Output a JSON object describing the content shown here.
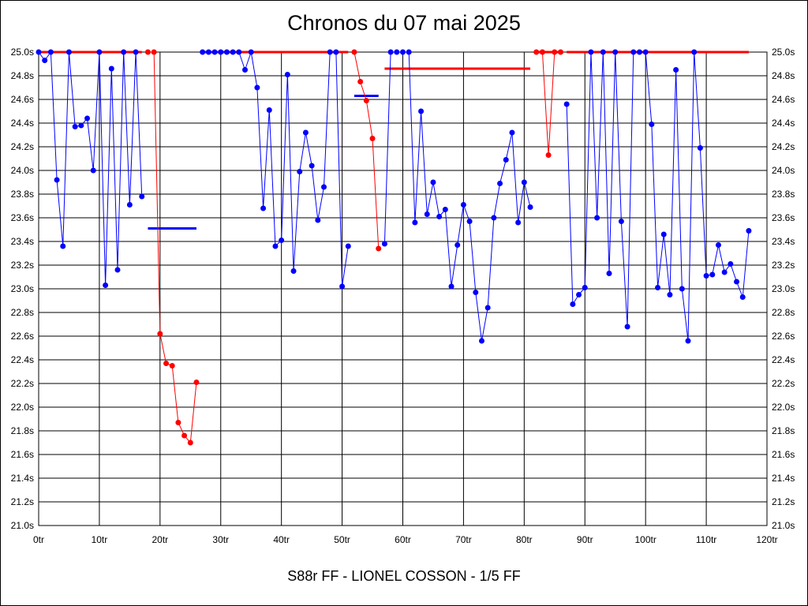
{
  "chart_data": {
    "type": "line",
    "title": "Chronos du 07 mai 2025",
    "subtitle": "S88r FF - LIONEL COSSON - 1/5 FF",
    "xlim": [
      0,
      120
    ],
    "ylim": [
      21.0,
      25.0
    ],
    "x_ticks": [
      0,
      10,
      20,
      30,
      40,
      50,
      60,
      70,
      80,
      90,
      100,
      110,
      120
    ],
    "x_tick_labels": [
      "0tr",
      "10tr",
      "20tr",
      "30tr",
      "40tr",
      "50tr",
      "60tr",
      "70tr",
      "80tr",
      "90tr",
      "100tr",
      "110tr",
      "120tr"
    ],
    "y_ticks": [
      21.0,
      21.2,
      21.4,
      21.6,
      21.8,
      22.0,
      22.2,
      22.4,
      22.6,
      22.8,
      23.0,
      23.2,
      23.4,
      23.6,
      23.8,
      24.0,
      24.2,
      24.4,
      24.6,
      24.8,
      25.0
    ],
    "y_tick_labels": [
      "21.0s",
      "21.2s",
      "21.4s",
      "21.6s",
      "21.8s",
      "22.0s",
      "22.2s",
      "22.4s",
      "22.6s",
      "22.8s",
      "23.0s",
      "23.2s",
      "23.4s",
      "23.6s",
      "23.8s",
      "24.0s",
      "24.2s",
      "24.4s",
      "24.6s",
      "24.8s",
      "25.0s"
    ],
    "grid": true,
    "series": [
      {
        "color": "#0000ff",
        "x": [
          0,
          1,
          2,
          3,
          4,
          5,
          6,
          7,
          8,
          9,
          10,
          11,
          12,
          13,
          14,
          15,
          16,
          17
        ],
        "y": [
          25.0,
          24.93,
          25.0,
          23.92,
          23.36,
          25.0,
          24.37,
          24.38,
          24.44,
          24.0,
          25.0,
          23.03,
          24.86,
          23.16,
          25.0,
          23.71,
          25.0,
          23.78
        ]
      },
      {
        "color": "#ff0000",
        "x": [
          18,
          19,
          20,
          21,
          22,
          23,
          24,
          25,
          26
        ],
        "y": [
          25.0,
          25.0,
          22.62,
          22.37,
          22.35,
          21.87,
          21.76,
          21.7,
          22.21
        ]
      },
      {
        "color": "#0000ff",
        "x": [
          27,
          28,
          29,
          30,
          31,
          32,
          33,
          34,
          35,
          36,
          37,
          38,
          39,
          40,
          41,
          42,
          43,
          44,
          45,
          46,
          47,
          48,
          49,
          50,
          51
        ],
        "y": [
          25.0,
          25.0,
          25.0,
          25.0,
          25.0,
          25.0,
          25.0,
          24.85,
          25.0,
          24.7,
          23.68,
          24.51,
          23.36,
          23.41,
          24.81,
          23.15,
          23.99,
          24.32,
          24.04,
          23.58,
          23.86,
          25.0,
          25.0,
          23.02,
          23.36
        ]
      },
      {
        "color": "#ff0000",
        "x": [
          52,
          53,
          54,
          55,
          56
        ],
        "y": [
          25.0,
          24.75,
          24.59,
          24.27,
          23.34
        ]
      },
      {
        "color": "#0000ff",
        "x": [
          57,
          58,
          59,
          60,
          61,
          62,
          63,
          64,
          65,
          66,
          67,
          68,
          69,
          70,
          71,
          72,
          73,
          74,
          75,
          76,
          77,
          78,
          79,
          80,
          81
        ],
        "y": [
          23.38,
          25.0,
          25.0,
          25.0,
          25.0,
          23.56,
          24.5,
          23.63,
          23.9,
          23.61,
          23.67,
          23.02,
          23.37,
          23.71,
          23.57,
          22.97,
          22.56,
          22.84,
          23.6,
          23.89,
          24.09,
          24.32,
          23.56,
          23.9,
          23.69
        ]
      },
      {
        "color": "#ff0000",
        "x": [
          82,
          83,
          84,
          85,
          86
        ],
        "y": [
          25.0,
          25.0,
          24.13,
          25.0,
          25.0
        ]
      },
      {
        "color": "#0000ff",
        "x": [
          87,
          88,
          89,
          90,
          91,
          92,
          93,
          94,
          95,
          96,
          97,
          98,
          99,
          100,
          101,
          102,
          103,
          104,
          105,
          106,
          107,
          108,
          109,
          110,
          111,
          112,
          113,
          114,
          115,
          116,
          117
        ],
        "y": [
          24.56,
          22.87,
          22.95,
          23.01,
          25.0,
          23.6,
          25.0,
          23.13,
          25.0,
          23.57,
          22.68,
          25.0,
          25.0,
          25.0,
          24.39,
          23.01,
          23.46,
          22.95,
          24.85,
          23.0,
          22.56,
          25.0,
          24.19,
          23.11,
          23.12,
          23.37,
          23.14,
          23.21,
          23.06,
          22.93,
          23.49
        ]
      }
    ],
    "reference_segments": [
      {
        "color": "#ff0000",
        "x": [
          0,
          17
        ],
        "y": 25.0
      },
      {
        "color": "#0000ff",
        "x": [
          18,
          26
        ],
        "y": 23.51
      },
      {
        "color": "#ff0000",
        "x": [
          27,
          51
        ],
        "y": 25.0
      },
      {
        "color": "#0000ff",
        "x": [
          52,
          56
        ],
        "y": 24.63
      },
      {
        "color": "#ff0000",
        "x": [
          57,
          81
        ],
        "y": 24.86
      },
      {
        "color": "#ff0000",
        "x": [
          82,
          86
        ],
        "y": 25.0
      },
      {
        "color": "#ff0000",
        "x": [
          87,
          117
        ],
        "y": 25.0
      }
    ]
  }
}
